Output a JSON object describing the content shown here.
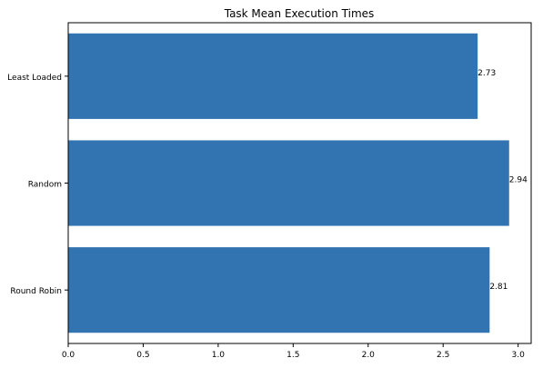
{
  "chart_data": {
    "type": "bar",
    "orientation": "horizontal",
    "title": "Task Mean Execution Times",
    "xlabel": "",
    "ylabel": "",
    "categories": [
      "Least Loaded",
      "Random",
      "Round Robin"
    ],
    "values": [
      2.73,
      2.94,
      2.81
    ],
    "data_labels": [
      "2.73",
      "2.94",
      "2.81"
    ],
    "xlim": [
      0,
      3.087
    ],
    "xticks": [
      0.0,
      0.5,
      1.0,
      1.5,
      2.0,
      2.5,
      3.0
    ],
    "xtick_labels": [
      "0.0",
      "0.5",
      "1.0",
      "1.5",
      "2.0",
      "2.5",
      "3.0"
    ],
    "bar_color": "#3274b1",
    "grid": false,
    "legend": "none"
  }
}
